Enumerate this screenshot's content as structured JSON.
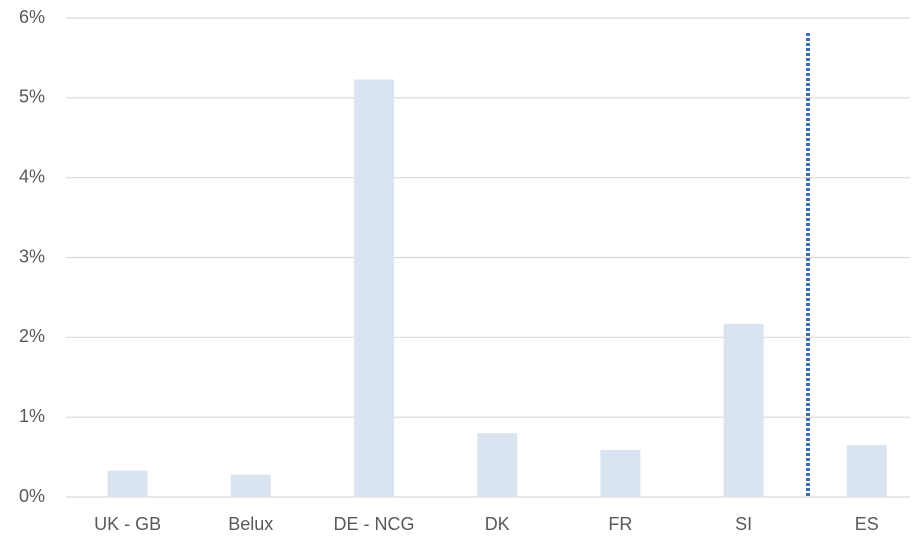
{
  "chart_data": {
    "type": "bar",
    "categories": [
      "UK - GB",
      "Belux",
      "DE - NCG",
      "DK",
      "FR",
      "SI",
      "ES"
    ],
    "values": [
      0.33,
      0.28,
      5.23,
      0.8,
      0.59,
      2.17,
      0.65
    ],
    "color": "#dae4f0",
    "ylim": [
      0,
      6
    ],
    "yticks": [
      {
        "value": 0,
        "label": "0%"
      },
      {
        "value": 1,
        "label": "1%"
      },
      {
        "value": 2,
        "label": "2%"
      },
      {
        "value": 3,
        "label": "3%"
      },
      {
        "value": 4,
        "label": "4%"
      },
      {
        "value": 5,
        "label": "5%"
      },
      {
        "value": 6,
        "label": "6%"
      }
    ],
    "grid": true
  }
}
